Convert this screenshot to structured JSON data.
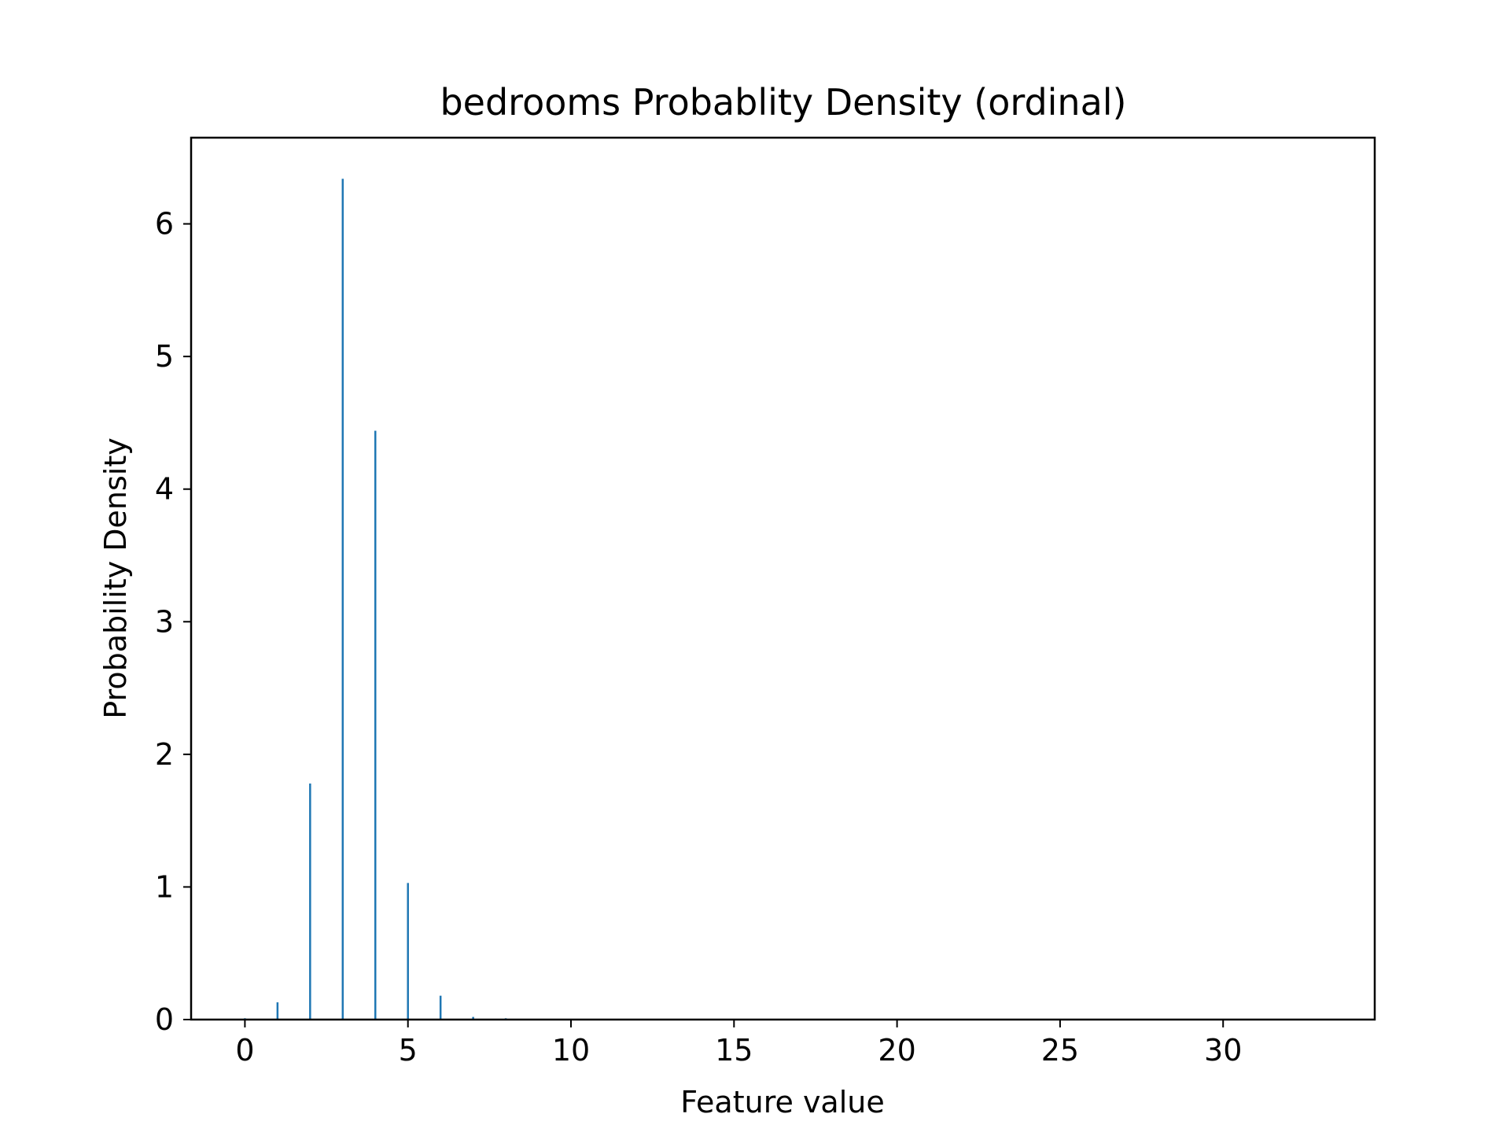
{
  "chart_data": {
    "type": "bar",
    "title": "bedrooms Probablity Density (ordinal)",
    "xlabel": "Feature value",
    "ylabel": "Probability Density",
    "x": [
      0,
      1,
      2,
      3,
      4,
      5,
      6,
      7,
      8,
      9,
      10,
      11,
      33
    ],
    "values": [
      0.01,
      0.13,
      1.78,
      6.34,
      4.44,
      1.03,
      0.18,
      0.02,
      0.01,
      0.003,
      0.001,
      0.001,
      0.001
    ],
    "xlim": [
      -1.65,
      34.65
    ],
    "ylim": [
      0,
      6.65
    ],
    "xticks": [
      0,
      5,
      10,
      15,
      20,
      25,
      30
    ],
    "yticks": [
      0,
      1,
      2,
      3,
      4,
      5,
      6
    ],
    "grid": false,
    "legend": "none",
    "bar_color": "#1f77b4"
  }
}
